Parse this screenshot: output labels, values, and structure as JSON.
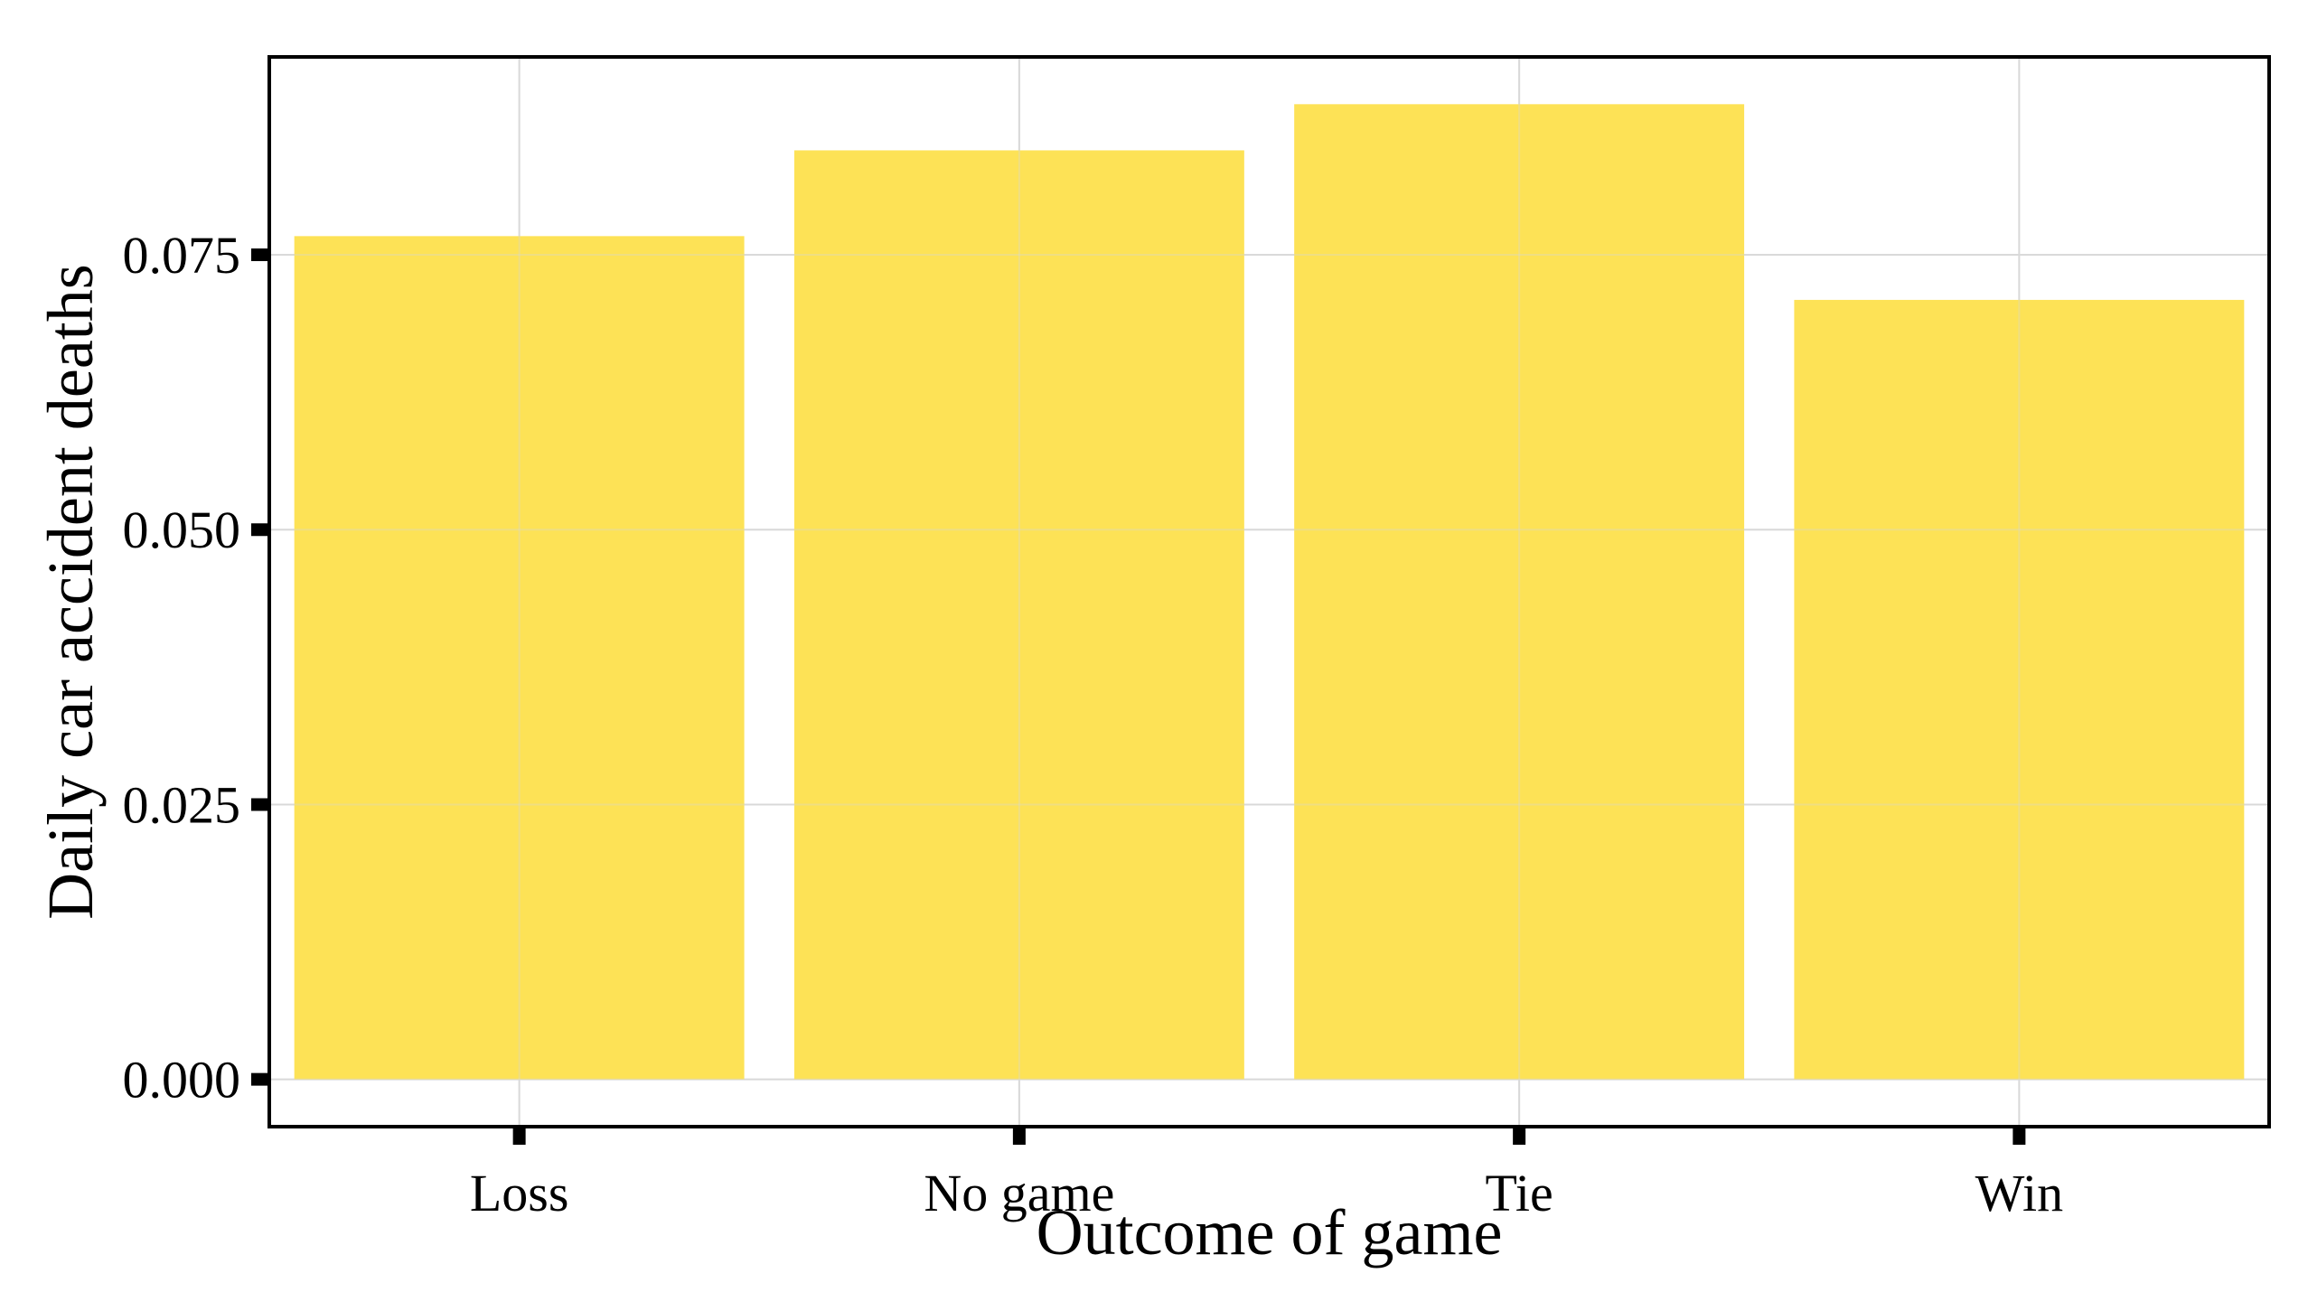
{
  "chart_data": {
    "type": "bar",
    "title": "",
    "xlabel": "Outcome of game",
    "ylabel": "Daily car accident deaths",
    "categories": [
      "Loss",
      "No game",
      "Tie",
      "Win"
    ],
    "values": [
      0.0767,
      0.0845,
      0.0887,
      0.0709
    ],
    "ylim": [
      -0.0043,
      0.093
    ],
    "yticks": [
      0.0,
      0.025,
      0.05,
      0.075
    ],
    "ytick_labels": [
      "0.000",
      "0.025",
      "0.050",
      "0.075"
    ],
    "grid": true,
    "legend": "none",
    "bar_color": "#FDE04D",
    "grid_color": "#D9D9D9",
    "axis_color": "#000000"
  }
}
